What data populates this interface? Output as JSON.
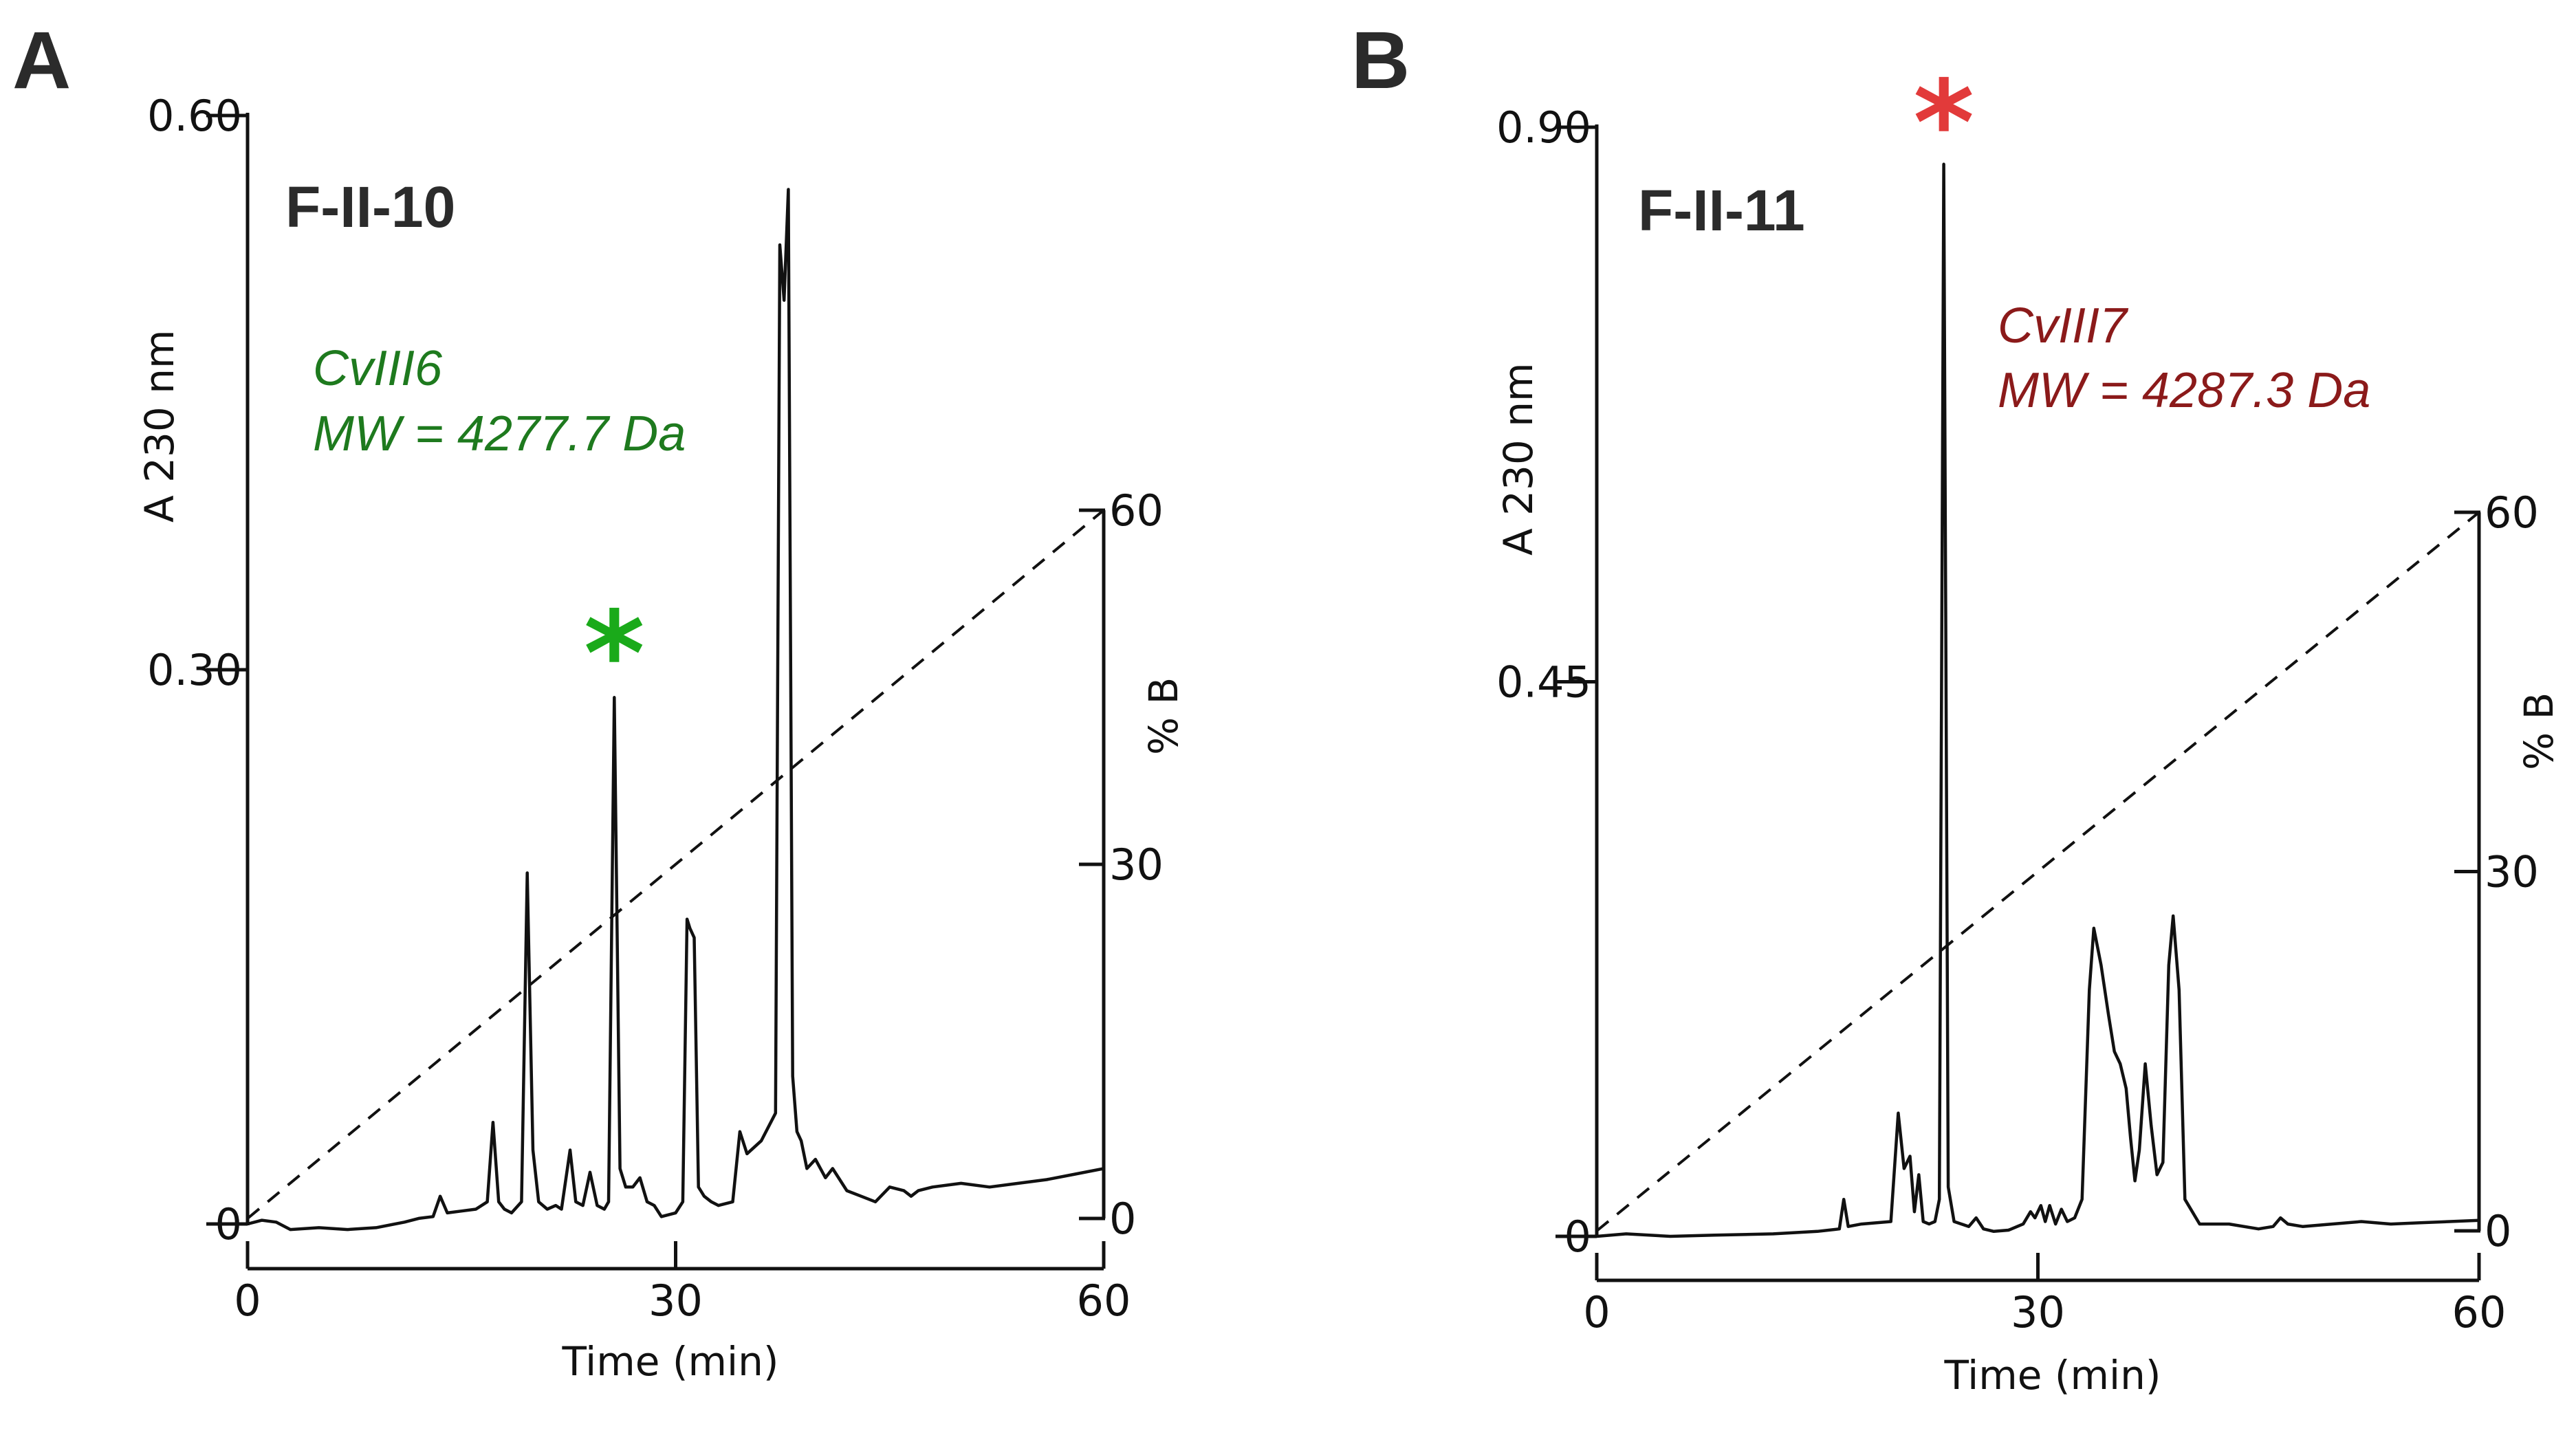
{
  "chart_data": [
    {
      "panel": "A",
      "type": "line",
      "title": "F-II-10",
      "xlabel": "Time (min)",
      "ylabel": "A 230 nm",
      "y2label": "% B",
      "xlim": [
        0,
        60
      ],
      "ylim": [
        0,
        0.6
      ],
      "y2lim": [
        0,
        60
      ],
      "x_ticks": [
        0,
        30,
        60
      ],
      "x_tick_labels": [
        "0",
        "30",
        "60"
      ],
      "y_ticks": [
        0,
        0.3,
        0.6
      ],
      "y_tick_labels": [
        "0",
        "0.30",
        "0.60"
      ],
      "y2_ticks": [
        0,
        30,
        60
      ],
      "y2_tick_labels": [
        "0",
        "30",
        "60"
      ],
      "annotation": {
        "name": "CvIII6",
        "mw": "MW = 4277.7 Da",
        "color": "#1e7a1e",
        "marker": "*",
        "marker_color": "#1aaa1a",
        "peak_time": 25.7
      },
      "gradient": {
        "x": [
          0,
          60
        ],
        "y": [
          0,
          60
        ]
      },
      "series": [
        {
          "name": "A 230 nm",
          "x": [
            0,
            1,
            2,
            3,
            5,
            7,
            9,
            11,
            12,
            13,
            13.5,
            14,
            15,
            16,
            16.8,
            17.2,
            17.6,
            18,
            18.5,
            19.2,
            19.6,
            20,
            20.4,
            21,
            21.6,
            22,
            22.6,
            23,
            23.5,
            24,
            24.5,
            25,
            25.3,
            25.7,
            26.1,
            26.5,
            27,
            27.5,
            28,
            28.5,
            29,
            30,
            30.5,
            30.8,
            31,
            31.3,
            31.6,
            32,
            32.5,
            33,
            34,
            34.5,
            35,
            36,
            37,
            37.3,
            37.6,
            37.9,
            38.2,
            38.5,
            38.8,
            39.2,
            39.8,
            40.5,
            41,
            42,
            43,
            44,
            45,
            46,
            46.5,
            47,
            48,
            50,
            52,
            54,
            56,
            58,
            60
          ],
          "y": [
            0.0,
            0.002,
            0.001,
            -0.003,
            -0.002,
            -0.003,
            -0.002,
            0.001,
            0.003,
            0.004,
            0.015,
            0.006,
            0.007,
            0.008,
            0.012,
            0.055,
            0.012,
            0.008,
            0.006,
            0.012,
            0.19,
            0.04,
            0.012,
            0.008,
            0.01,
            0.008,
            0.04,
            0.012,
            0.01,
            0.028,
            0.01,
            0.008,
            0.012,
            0.285,
            0.03,
            0.02,
            0.02,
            0.025,
            0.012,
            0.01,
            0.004,
            0.006,
            0.012,
            0.165,
            0.16,
            0.155,
            0.02,
            0.015,
            0.012,
            0.01,
            0.012,
            0.05,
            0.038,
            0.045,
            0.06,
            0.53,
            0.5,
            0.56,
            0.08,
            0.05,
            0.045,
            0.03,
            0.035,
            0.025,
            0.03,
            0.018,
            0.015,
            0.012,
            0.02,
            0.018,
            0.015,
            0.018,
            0.02,
            0.022,
            0.02,
            0.022,
            0.024,
            0.027,
            0.03
          ]
        }
      ]
    },
    {
      "panel": "B",
      "type": "line",
      "title": "F-II-11",
      "xlabel": "Time (min)",
      "ylabel": "A 230 nm",
      "y2label": "% B",
      "xlim": [
        0,
        60
      ],
      "ylim": [
        0,
        0.9
      ],
      "y2lim": [
        0,
        60
      ],
      "x_ticks": [
        0,
        30,
        60
      ],
      "x_tick_labels": [
        "0",
        "30",
        "60"
      ],
      "y_ticks": [
        0,
        0.45,
        0.9
      ],
      "y_tick_labels": [
        "0",
        "0.45",
        "0.90"
      ],
      "y2_ticks": [
        0,
        30,
        60
      ],
      "y2_tick_labels": [
        "0",
        "30",
        "60"
      ],
      "annotation": {
        "name": "CvIII7",
        "mw": "MW = 4287.3 Da",
        "color": "#8b1a1a",
        "marker": "*",
        "marker_color": "#e23a3a",
        "peak_time": 23.6
      },
      "gradient": {
        "x": [
          0,
          60
        ],
        "y": [
          0,
          60
        ]
      },
      "series": [
        {
          "name": "A 230 nm",
          "x": [
            0,
            2,
            5,
            8,
            12,
            15,
            16.5,
            16.8,
            17.1,
            18,
            20,
            20.5,
            20.9,
            21.3,
            21.6,
            21.9,
            22.2,
            22.6,
            23,
            23.3,
            23.6,
            23.9,
            24.3,
            24.8,
            25.3,
            25.8,
            26.3,
            27,
            28,
            29,
            29.5,
            29.8,
            30.2,
            30.5,
            30.8,
            31.2,
            31.6,
            32,
            32.5,
            33,
            33.5,
            33.8,
            34.3,
            34.8,
            35.2,
            35.6,
            36,
            36.3,
            36.6,
            36.9,
            37.3,
            37.7,
            38.1,
            38.5,
            38.9,
            39.2,
            39.6,
            40,
            41,
            43,
            45,
            46,
            46.5,
            47,
            48,
            50,
            52,
            54,
            56,
            58,
            60
          ],
          "y": [
            0.0,
            0.002,
            0.0,
            0.001,
            0.002,
            0.004,
            0.006,
            0.03,
            0.008,
            0.01,
            0.012,
            0.1,
            0.055,
            0.065,
            0.02,
            0.05,
            0.012,
            0.01,
            0.012,
            0.03,
            0.87,
            0.04,
            0.012,
            0.01,
            0.008,
            0.015,
            0.006,
            0.004,
            0.005,
            0.01,
            0.02,
            0.015,
            0.025,
            0.012,
            0.025,
            0.01,
            0.022,
            0.012,
            0.015,
            0.03,
            0.2,
            0.25,
            0.22,
            0.18,
            0.15,
            0.14,
            0.12,
            0.08,
            0.045,
            0.07,
            0.14,
            0.09,
            0.05,
            0.06,
            0.22,
            0.26,
            0.2,
            0.03,
            0.01,
            0.01,
            0.006,
            0.008,
            0.015,
            0.01,
            0.008,
            0.01,
            0.012,
            0.01,
            0.011,
            0.012,
            0.013
          ]
        }
      ]
    }
  ]
}
